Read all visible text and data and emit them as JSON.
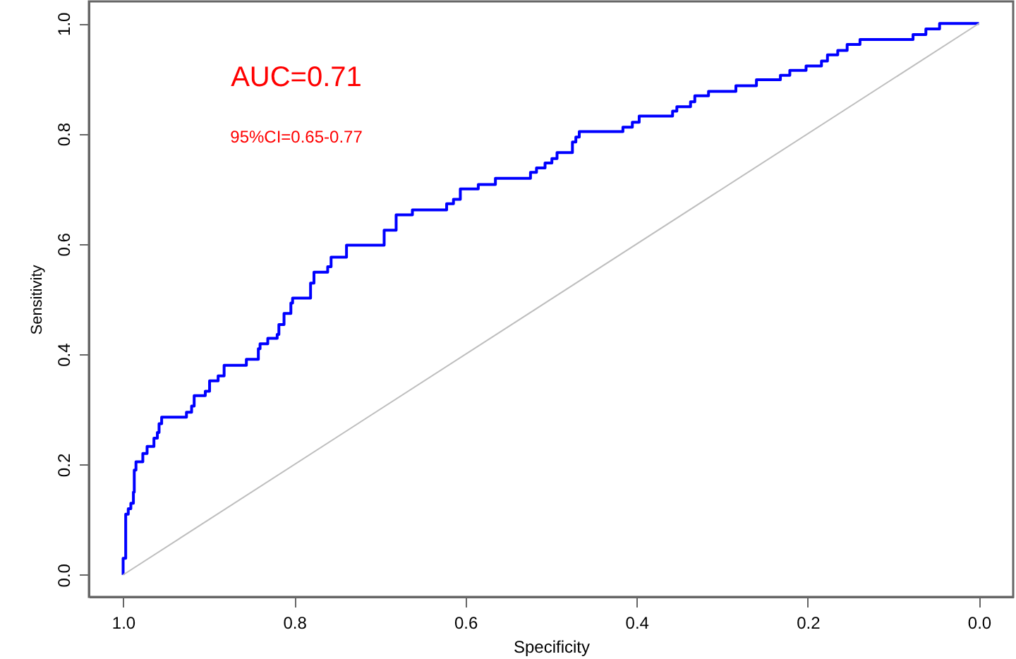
{
  "chart_data": {
    "type": "step",
    "xlabel": "Specificity",
    "ylabel": "Sensitivity",
    "annotations": [
      "AUC=0.71",
      "95%CI=0.65-0.77"
    ],
    "xlim": [
      1.04,
      -0.04
    ],
    "ylim": [
      -0.04,
      1.04
    ],
    "xticks": [
      {
        "value": 1,
        "label": "1.0"
      },
      0.8,
      0.6,
      0.4,
      0.2,
      {
        "value": 0,
        "label": "0.0"
      }
    ],
    "yticks": [
      {
        "value": 0,
        "label": "0.0"
      },
      0.2,
      0.4,
      0.6,
      0.8,
      {
        "value": 1,
        "label": "1.0"
      }
    ],
    "grid": false,
    "series": [
      {
        "color": "#0000ff",
        "x": [
          1.0,
          1.0,
          0.997,
          0.994,
          0.991,
          0.988,
          0.987,
          0.985,
          0.977,
          0.972,
          0.964,
          0.96,
          0.958,
          0.955,
          0.926,
          0.92,
          0.917,
          0.904,
          0.899,
          0.889,
          0.882,
          0.856,
          0.842,
          0.84,
          0.831,
          0.82,
          0.818,
          0.812,
          0.804,
          0.802,
          0.781,
          0.777,
          0.761,
          0.757,
          0.739,
          0.695,
          0.681,
          0.662,
          0.622,
          0.614,
          0.606,
          0.585,
          0.565,
          0.524,
          0.517,
          0.507,
          0.499,
          0.493,
          0.475,
          0.471,
          0.467,
          0.416,
          0.405,
          0.397,
          0.358,
          0.353,
          0.337,
          0.332,
          0.316,
          0.284,
          0.26,
          0.232,
          0.221,
          0.202,
          0.184,
          0.177,
          0.165,
          0.154,
          0.139,
          0.077,
          0.062,
          0.046,
          0.0
        ],
        "values": [
          0,
          0.03,
          0.11,
          0.12,
          0.13,
          0.15,
          0.19,
          0.205,
          0.22,
          0.233,
          0.248,
          0.258,
          0.274,
          0.286,
          0.295,
          0.306,
          0.325,
          0.333,
          0.352,
          0.361,
          0.38,
          0.391,
          0.41,
          0.419,
          0.429,
          0.436,
          0.454,
          0.474,
          0.493,
          0.502,
          0.529,
          0.549,
          0.559,
          0.576,
          0.598,
          0.625,
          0.653,
          0.662,
          0.673,
          0.681,
          0.7,
          0.708,
          0.719,
          0.73,
          0.738,
          0.747,
          0.755,
          0.766,
          0.785,
          0.794,
          0.804,
          0.812,
          0.821,
          0.832,
          0.841,
          0.849,
          0.858,
          0.869,
          0.877,
          0.887,
          0.898,
          0.906,
          0.915,
          0.923,
          0.932,
          0.943,
          0.951,
          0.962,
          0.971,
          0.98,
          0.99,
          1.0,
          1.0
        ]
      },
      {
        "type": "line",
        "color": "#bebebe",
        "x": [
          1,
          0
        ],
        "values": [
          0,
          1
        ]
      }
    ]
  }
}
